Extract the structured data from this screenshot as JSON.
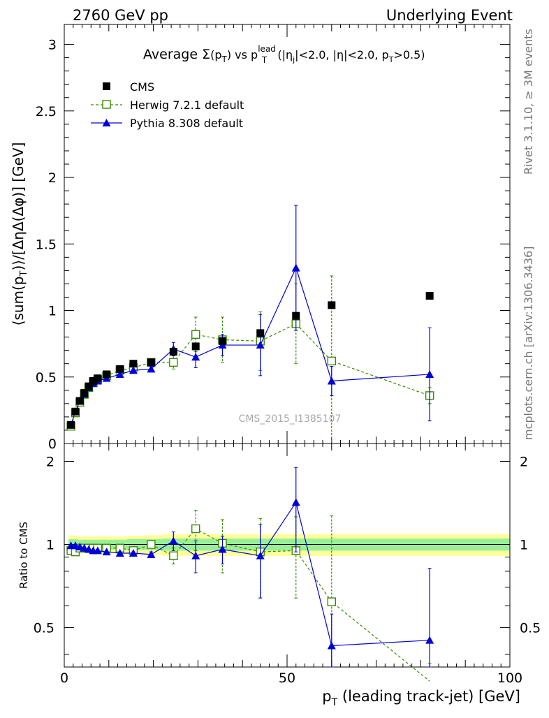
{
  "header": {
    "left": "2760 GeV pp",
    "right": "Underlying Event"
  },
  "side_labels": {
    "rivet": "Rivet 3.1.10, ≥ 3M events",
    "mcplots": "mcplots.cern.ch [arXiv:1306.3436]"
  },
  "watermark": "CMS_2015_I1385107",
  "main_title": {
    "prefix": "Average ",
    "sigma": "Σ",
    "pt_open": "(p",
    "pt_sub": "T",
    "pt_close": ")",
    "vs": " vs p",
    "lead_sup": "lead",
    "lead_sub": "T",
    "cuts_1": " (|η",
    "cuts_j": "j",
    "cuts_2": "|<2.0, |η|<2.0, p",
    "cuts_t": "T",
    "cuts_3": ">0.5)"
  },
  "axes": {
    "ylabel_top": "⟨sum(p_T)⟩/[ΔηΔ(Δφ)] [GeV]",
    "ylabel_bottom": "Ratio to CMS",
    "xlabel": "p_T (leading track-jet) [GeV]"
  },
  "legend": [
    {
      "label": "CMS",
      "color": "#000000",
      "marker": "square-filled",
      "line": "none"
    },
    {
      "label": "Herwig 7.2.1 default",
      "color": "#3a8a00",
      "marker": "square-open",
      "line": "dashed"
    },
    {
      "label": "Pythia 8.308 default",
      "color": "#0000d8",
      "marker": "triangle-filled",
      "line": "solid"
    }
  ],
  "chart_data": [
    {
      "type": "scatter",
      "panel": "main",
      "xlim": [
        0,
        100
      ],
      "ylim": [
        0,
        3.15
      ],
      "x_ticks": [
        "0",
        "50",
        "100"
      ],
      "y_ticks": [
        "0",
        "0.5",
        "1",
        "1.5",
        "2",
        "2.5",
        "3"
      ],
      "series": [
        {
          "name": "CMS",
          "x": [
            1.5,
            2.5,
            3.5,
            4.5,
            5.5,
            6.5,
            7.5,
            9.5,
            12.5,
            15.5,
            19.5,
            24.5,
            29.5,
            35.5,
            44,
            52,
            60,
            82
          ],
          "y": [
            0.14,
            0.24,
            0.32,
            0.38,
            0.43,
            0.47,
            0.49,
            0.52,
            0.56,
            0.6,
            0.61,
            0.69,
            0.73,
            0.77,
            0.83,
            0.96,
            1.04,
            1.11
          ]
        },
        {
          "name": "Herwig 7.2.1 default",
          "x": [
            1.5,
            2.5,
            3.5,
            4.5,
            5.5,
            6.5,
            7.5,
            9.5,
            12.5,
            15.5,
            19.5,
            24.5,
            29.5,
            35.5,
            44,
            52,
            60,
            82
          ],
          "y": [
            0.13,
            0.23,
            0.31,
            0.37,
            0.42,
            0.46,
            0.48,
            0.51,
            0.55,
            0.57,
            0.61,
            0.61,
            0.82,
            0.78,
            0.77,
            0.9,
            0.62,
            0.36
          ],
          "yerr": [
            0.01,
            0.01,
            0.01,
            0.01,
            0.01,
            0.01,
            0.01,
            0.01,
            0.01,
            0.01,
            0.02,
            0.05,
            0.13,
            0.17,
            0.22,
            0.3,
            0.64,
            0.06
          ]
        },
        {
          "name": "Pythia 8.308 default",
          "x": [
            1.5,
            2.5,
            3.5,
            4.5,
            5.5,
            6.5,
            7.5,
            9.5,
            12.5,
            15.5,
            19.5,
            24.5,
            29.5,
            35.5,
            44,
            52,
            60,
            82
          ],
          "y": [
            0.14,
            0.24,
            0.32,
            0.37,
            0.42,
            0.45,
            0.47,
            0.49,
            0.52,
            0.55,
            0.56,
            0.71,
            0.65,
            0.74,
            0.74,
            1.32,
            0.47,
            0.52
          ],
          "yerr": [
            0.01,
            0.01,
            0.01,
            0.01,
            0.01,
            0.01,
            0.01,
            0.01,
            0.01,
            0.01,
            0.02,
            0.05,
            0.08,
            0.08,
            0.23,
            0.47,
            0.11,
            0.35
          ]
        }
      ]
    },
    {
      "type": "scatter",
      "panel": "ratio",
      "xlim": [
        0,
        100
      ],
      "ylim": [
        0.36,
        2.32
      ],
      "y_ticks": [
        "0.5",
        "1",
        "2"
      ],
      "ref_line": 1,
      "bands": {
        "x": [
          1.5,
          2.5,
          3.5,
          4.5,
          5.5,
          6.5,
          7.5,
          9.5,
          12.5,
          15.5,
          19.5,
          24.5,
          29.5,
          35.5,
          44,
          52,
          60,
          82
        ],
        "yellow": [
          0.08,
          0.075,
          0.07,
          0.07,
          0.07,
          0.07,
          0.07,
          0.07,
          0.07,
          0.075,
          0.08,
          0.09,
          0.09,
          0.09,
          0.09,
          0.09,
          0.09,
          0.09
        ],
        "green": [
          0.045,
          0.045,
          0.04,
          0.04,
          0.04,
          0.04,
          0.04,
          0.04,
          0.04,
          0.045,
          0.045,
          0.05,
          0.05,
          0.05,
          0.05,
          0.05,
          0.05,
          0.05
        ],
        "color_yellow": "#ffff99",
        "color_green": "#99ee99"
      },
      "series": [
        {
          "name": "Herwig 7.2.1 default",
          "x": [
            1.5,
            2.5,
            3.5,
            4.5,
            5.5,
            6.5,
            7.5,
            9.5,
            12.5,
            15.5,
            19.5,
            24.5,
            29.5,
            35.5,
            44,
            52,
            60,
            82
          ],
          "y": [
            0.95,
            0.94,
            0.97,
            0.97,
            0.97,
            0.97,
            0.97,
            0.97,
            0.97,
            0.95,
            1.0,
            0.91,
            1.14,
            1.01,
            0.94,
            0.95,
            0.62,
            0.32
          ],
          "yerr": [
            0.01,
            0.01,
            0.01,
            0.01,
            0.01,
            0.01,
            0.01,
            0.01,
            0.01,
            0.01,
            0.03,
            0.06,
            0.19,
            0.22,
            0.3,
            0.31,
            0.65,
            0.05
          ]
        },
        {
          "name": "Pythia 8.308 default",
          "x": [
            1.5,
            2.5,
            3.5,
            4.5,
            5.5,
            6.5,
            7.5,
            9.5,
            12.5,
            15.5,
            19.5,
            24.5,
            29.5,
            35.5,
            44,
            52,
            60,
            82
          ],
          "y": [
            0.99,
            0.99,
            0.98,
            0.97,
            0.96,
            0.95,
            0.95,
            0.94,
            0.93,
            0.93,
            0.92,
            1.03,
            0.91,
            0.96,
            0.91,
            1.42,
            0.43,
            0.45
          ],
          "yerr": [
            0.01,
            0.01,
            0.01,
            0.01,
            0.01,
            0.01,
            0.01,
            0.01,
            0.01,
            0.01,
            0.02,
            0.08,
            0.12,
            0.11,
            0.27,
            0.48,
            0.13,
            0.37
          ]
        }
      ]
    }
  ]
}
